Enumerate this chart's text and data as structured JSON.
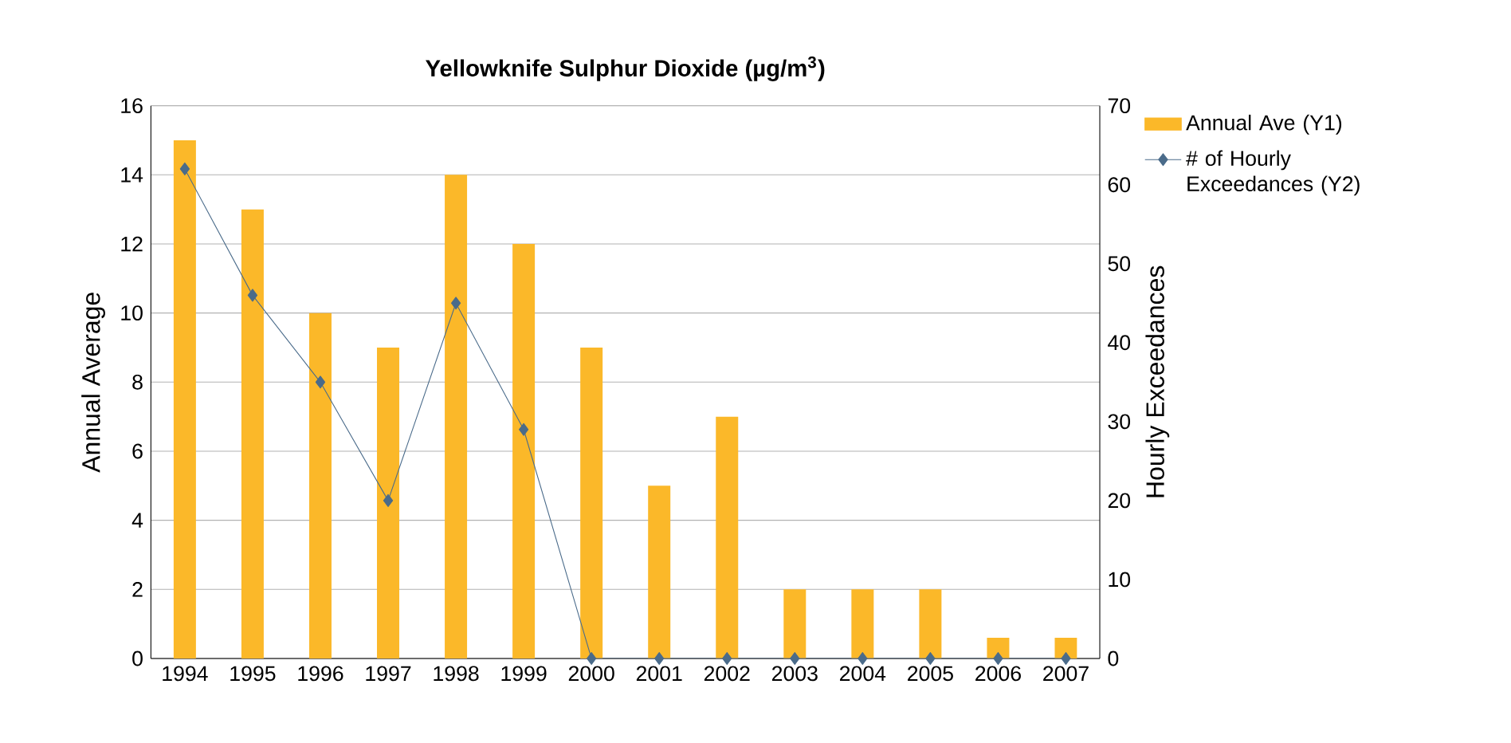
{
  "chart_data": {
    "type": "bar",
    "title": "Yellowknife Sulphur Dioxide (µg/m$^{3}$)",
    "ylabel": "Annual Average",
    "y2label": "Hourly Exceedances",
    "categories": [
      "1994",
      "1995",
      "1996",
      "1997",
      "1998",
      "1999",
      "2000",
      "2001",
      "2002",
      "2003",
      "2004",
      "2005",
      "2006",
      "2007"
    ],
    "series": [
      {
        "name": "Annual Ave (Y1)",
        "color": "#fbb829",
        "values": [
          15,
          13,
          10,
          9,
          14,
          12,
          9,
          5,
          7,
          2,
          2,
          2,
          0.6,
          0.6
        ]
      },
      {
        "name": "# of Hourly Exceedances (Y2)",
        "type": "line",
        "axis": "y2",
        "color": "#4a6b8a",
        "marker": "diamond",
        "line_style": "solid",
        "values": [
          62,
          46,
          35,
          20,
          45,
          29,
          0,
          0,
          0,
          0,
          0,
          0,
          0,
          0
        ]
      }
    ],
    "ylim": [
      0,
      16
    ],
    "yticks": [
      0,
      2,
      4,
      6,
      8,
      10,
      12,
      14,
      16
    ],
    "y2lim": [
      0,
      70
    ],
    "y2ticks": [
      0,
      10,
      20,
      30,
      40,
      50,
      60,
      70
    ],
    "grid": "y",
    "legend": "top right"
  }
}
